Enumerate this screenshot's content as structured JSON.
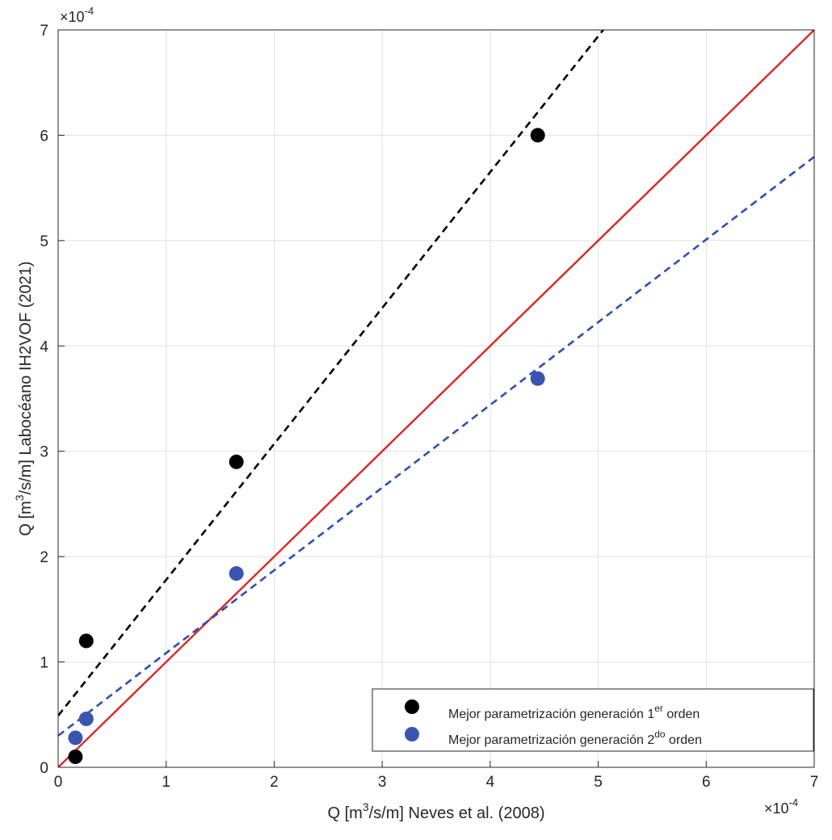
{
  "chart_data": {
    "type": "scatter",
    "title": "",
    "xlabel": {
      "prefix": "Q [m",
      "sup": "3",
      "suffix": "/s/m] Neves et al. (2008)"
    },
    "ylabel": {
      "prefix": "Q [m",
      "sup": "3",
      "suffix": "/s/m] Labocéano IH2VOF (2021)"
    },
    "xlim": [
      0,
      7
    ],
    "ylim": [
      0,
      7
    ],
    "x_multiplier": {
      "base": "×10",
      "exp": "-4"
    },
    "y_multiplier": {
      "base": "×10",
      "exp": "-4"
    },
    "xticks": [
      "0",
      "1",
      "2",
      "3",
      "4",
      "5",
      "6",
      "7"
    ],
    "yticks": [
      "0",
      "1",
      "2",
      "3",
      "4",
      "5",
      "6",
      "7"
    ],
    "grid": true,
    "legend_position": "bottom-right",
    "series": [
      {
        "name": "Mejor parametrización generación 1er orden",
        "legend": {
          "prefix": "Mejor parametrización generación 1",
          "sup": "er",
          "suffix": " orden"
        },
        "color": "#000000",
        "x": [
          0.16,
          0.26,
          1.65,
          4.44
        ],
        "y": [
          0.1,
          1.2,
          2.9,
          6.0
        ],
        "fit": {
          "slope": 1.29,
          "intercept": 0.49,
          "color": "#000000",
          "style": "dashed"
        }
      },
      {
        "name": "Mejor parametrización generación 2do orden",
        "legend": {
          "prefix": "Mejor parametrización generación 2",
          "sup": "do",
          "suffix": " orden"
        },
        "color": "#3a55b0",
        "x": [
          0.16,
          0.26,
          1.65,
          4.44
        ],
        "y": [
          0.28,
          0.46,
          1.84,
          3.69
        ],
        "fit": {
          "slope": 0.785,
          "intercept": 0.3,
          "color": "#2f4db5",
          "style": "dashed"
        }
      }
    ],
    "reference_line": {
      "slope": 1,
      "intercept": 0,
      "color": "#e02424",
      "style": "solid"
    }
  }
}
